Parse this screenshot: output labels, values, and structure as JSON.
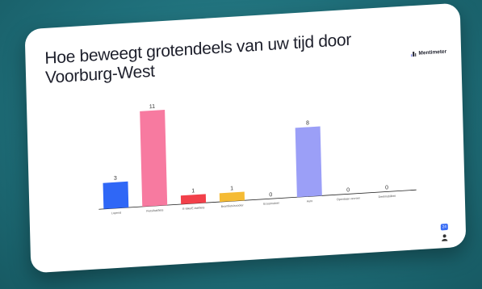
{
  "slide": {
    "title": "Hoe beweegt grotendeels van uw tijd door Voorburg-West",
    "brand": "Mentimeter",
    "badge": "24"
  },
  "chart_data": {
    "type": "bar",
    "categories": [
      "Lopend",
      "Fiets/bakfiets",
      "E-bike/E-bakfiets",
      "Bromfiets/scooter",
      "Scootmobiel",
      "Auto",
      "Openbaar vervoer",
      "Deelmobiliteit"
    ],
    "values": [
      3,
      11,
      1,
      1,
      0,
      8,
      0,
      0
    ],
    "colors": [
      "#2f67f6",
      "#f77aa0",
      "#f2404a",
      "#f5bb34",
      "#9b9ff7",
      "#9b9ff7",
      "#9b9ff7",
      "#9b9ff7"
    ],
    "ylim": [
      0,
      11
    ]
  }
}
